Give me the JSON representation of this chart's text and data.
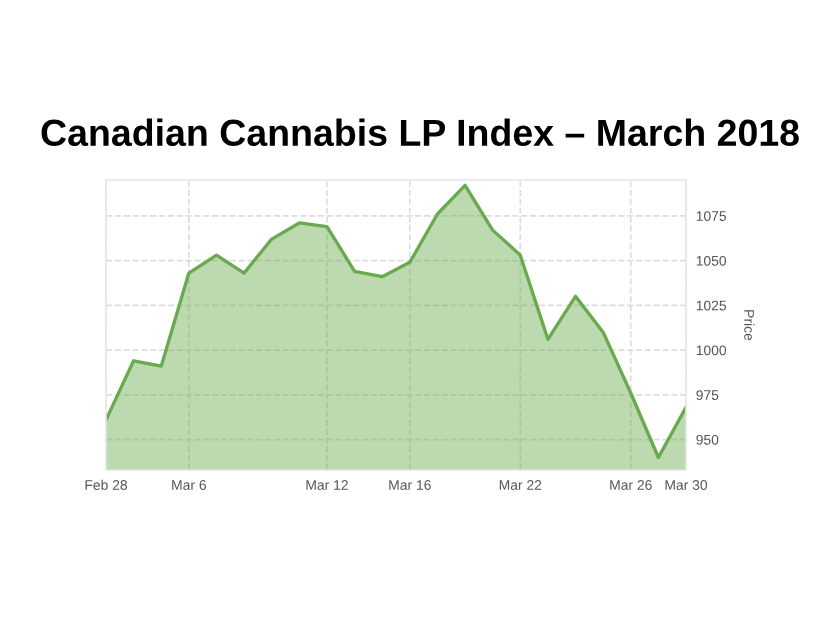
{
  "chart_data": {
    "type": "area",
    "title": "Canadian Cannabis LP Index – March 2018",
    "ylabel": "Price",
    "categories": [
      "Feb 28",
      null,
      null,
      "Mar 6",
      null,
      null,
      null,
      null,
      "Mar 12",
      null,
      null,
      "Mar 16",
      null,
      null,
      null,
      "Mar 22",
      null,
      null,
      null,
      "Mar 26",
      null,
      "Mar 30"
    ],
    "series": [
      {
        "color": "#6aaa4f",
        "values": [
          961,
          994,
          991,
          1043,
          1053,
          1043,
          1062,
          1071,
          1069,
          1044,
          1041,
          1049,
          1076,
          1092,
          1067,
          1053,
          1006,
          1030,
          1010,
          976,
          940,
          968
        ]
      }
    ],
    "ylim": [
      933,
      1095
    ],
    "yticks": [
      950,
      975,
      1000,
      1025,
      1050,
      1075
    ],
    "grid": true,
    "line_style": "solid",
    "marker": "none"
  }
}
